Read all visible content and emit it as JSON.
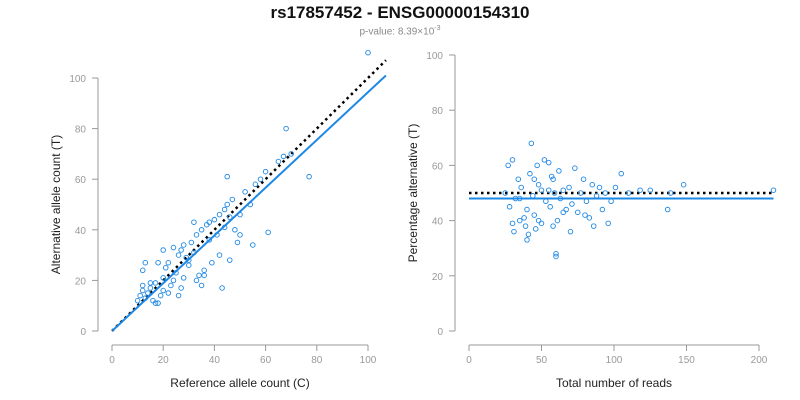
{
  "figure": {
    "title": "rs17857452 - ENSG00000154310",
    "pvalue_label": "p-value: 8.39×10",
    "pvalue_exponent": "-3"
  },
  "colors": {
    "accent": "#1e88e5",
    "reference": "#000000",
    "axis": "#999999",
    "tick_text": "#999999",
    "label_text": "#222222"
  },
  "chart_data": [
    {
      "type": "scatter",
      "xlabel": "Reference allele count (C)",
      "ylabel": "Alternative allele count (T)",
      "xlim": [
        0,
        107
      ],
      "ylim": [
        0,
        107
      ],
      "xticks": [
        0,
        20,
        40,
        60,
        80,
        100
      ],
      "yticks": [
        0,
        20,
        40,
        60,
        80,
        100
      ],
      "grid": false,
      "points": [
        [
          10,
          12
        ],
        [
          11,
          14
        ],
        [
          12,
          16
        ],
        [
          12,
          18
        ],
        [
          13,
          13
        ],
        [
          14,
          15
        ],
        [
          15,
          17
        ],
        [
          16,
          12
        ],
        [
          17,
          19
        ],
        [
          18,
          11
        ],
        [
          19,
          14
        ],
        [
          20,
          16
        ],
        [
          20,
          21
        ],
        [
          21,
          25
        ],
        [
          22,
          27
        ],
        [
          23,
          18
        ],
        [
          24,
          20
        ],
        [
          25,
          23
        ],
        [
          26,
          30
        ],
        [
          27,
          32
        ],
        [
          28,
          34
        ],
        [
          29,
          29
        ],
        [
          30,
          26
        ],
        [
          31,
          35
        ],
        [
          32,
          31
        ],
        [
          33,
          38
        ],
        [
          34,
          22
        ],
        [
          35,
          40
        ],
        [
          36,
          24
        ],
        [
          37,
          42
        ],
        [
          38,
          36
        ],
        [
          40,
          44
        ],
        [
          41,
          38
        ],
        [
          42,
          46
        ],
        [
          43,
          17
        ],
        [
          44,
          48
        ],
        [
          45,
          50
        ],
        [
          46,
          45
        ],
        [
          47,
          52
        ],
        [
          48,
          40
        ],
        [
          50,
          46
        ],
        [
          52,
          55
        ],
        [
          54,
          50
        ],
        [
          56,
          58
        ],
        [
          58,
          60
        ],
        [
          60,
          63
        ],
        [
          61,
          39
        ],
        [
          65,
          67
        ],
        [
          67,
          69
        ],
        [
          68,
          80
        ],
        [
          70,
          70
        ],
        [
          77,
          61
        ],
        [
          100,
          110
        ],
        [
          13,
          27
        ],
        [
          18,
          27
        ],
        [
          20,
          32
        ],
        [
          24,
          33
        ],
        [
          28,
          21
        ],
        [
          32,
          43
        ],
        [
          35,
          18
        ],
        [
          38,
          43
        ],
        [
          44,
          41
        ],
        [
          49,
          35
        ],
        [
          55,
          34
        ],
        [
          15,
          19
        ],
        [
          22,
          15
        ],
        [
          26,
          14
        ],
        [
          30,
          28
        ],
        [
          36,
          22
        ],
        [
          42,
          30
        ],
        [
          45,
          61
        ],
        [
          50,
          38
        ],
        [
          12,
          24
        ],
        [
          17,
          11
        ],
        [
          27,
          17
        ],
        [
          33,
          20
        ],
        [
          39,
          27
        ],
        [
          46,
          28
        ]
      ],
      "regression_line": {
        "x": [
          0,
          107
        ],
        "y": [
          0,
          101
        ]
      },
      "reference_line": {
        "x": [
          0,
          107
        ],
        "y": [
          0,
          107
        ]
      }
    },
    {
      "type": "scatter",
      "xlabel": "Total number of reads",
      "ylabel": "Percentage alternative (T)",
      "xlim": [
        0,
        210
      ],
      "ylim": [
        0,
        100
      ],
      "xticks": [
        0,
        50,
        100,
        150,
        200
      ],
      "yticks": [
        0,
        20,
        40,
        60,
        80,
        100
      ],
      "grid": false,
      "points": [
        [
          25,
          50
        ],
        [
          27,
          60
        ],
        [
          28,
          45
        ],
        [
          30,
          62
        ],
        [
          31,
          36
        ],
        [
          32,
          48
        ],
        [
          34,
          55
        ],
        [
          35,
          40
        ],
        [
          36,
          52
        ],
        [
          38,
          41
        ],
        [
          39,
          38
        ],
        [
          40,
          44
        ],
        [
          41,
          35
        ],
        [
          42,
          57
        ],
        [
          43,
          68
        ],
        [
          44,
          49
        ],
        [
          45,
          42
        ],
        [
          46,
          37
        ],
        [
          47,
          60
        ],
        [
          48,
          53
        ],
        [
          50,
          39
        ],
        [
          52,
          62
        ],
        [
          53,
          47
        ],
        [
          55,
          51
        ],
        [
          56,
          45
        ],
        [
          57,
          56
        ],
        [
          58,
          38
        ],
        [
          59,
          50
        ],
        [
          60,
          28
        ],
        [
          61,
          40
        ],
        [
          62,
          58
        ],
        [
          63,
          48
        ],
        [
          65,
          51
        ],
        [
          67,
          44
        ],
        [
          69,
          52
        ],
        [
          71,
          46
        ],
        [
          73,
          59
        ],
        [
          75,
          43
        ],
        [
          77,
          50
        ],
        [
          79,
          55
        ],
        [
          81,
          47
        ],
        [
          83,
          41
        ],
        [
          85,
          53
        ],
        [
          86,
          38
        ],
        [
          88,
          49
        ],
        [
          90,
          52
        ],
        [
          92,
          44
        ],
        [
          94,
          50
        ],
        [
          96,
          39
        ],
        [
          98,
          47
        ],
        [
          101,
          52
        ],
        [
          105,
          57
        ],
        [
          110,
          50
        ],
        [
          118,
          51
        ],
        [
          125,
          51
        ],
        [
          137,
          44
        ],
        [
          139,
          50
        ],
        [
          148,
          53
        ],
        [
          210,
          51
        ],
        [
          35,
          48
        ],
        [
          45,
          55
        ],
        [
          55,
          61
        ],
        [
          60,
          27
        ],
        [
          70,
          36
        ],
        [
          80,
          42
        ],
        [
          30,
          39
        ],
        [
          50,
          51
        ],
        [
          40,
          33
        ],
        [
          65,
          43
        ],
        [
          48,
          40
        ],
        [
          58,
          55
        ]
      ],
      "regression_line": {
        "x": [
          0,
          210
        ],
        "y": [
          48,
          48
        ]
      },
      "reference_line": {
        "x": [
          0,
          210
        ],
        "y": [
          50,
          50
        ]
      }
    }
  ]
}
